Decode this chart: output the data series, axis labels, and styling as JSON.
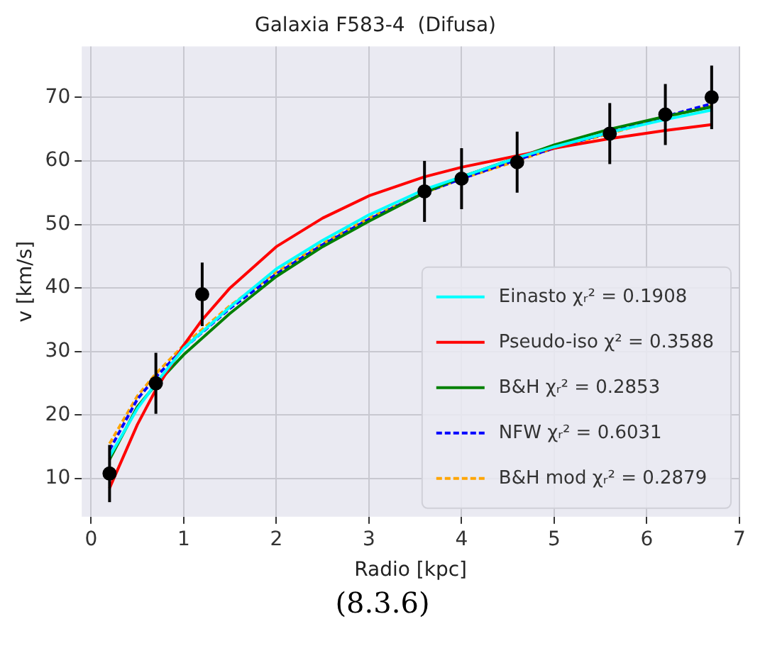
{
  "chart_data": {
    "type": "line",
    "title": "Galaxia F583-4  (Difusa)",
    "xlabel": "Radio [kpc]",
    "ylabel": "v [km/s]",
    "xlim": [
      -0.1,
      7
    ],
    "xticks": [
      0,
      1,
      2,
      3,
      4,
      5,
      6,
      7
    ],
    "ylim": [
      4,
      78
    ],
    "yticks": [
      10,
      20,
      30,
      40,
      50,
      60,
      70
    ],
    "grid": true,
    "legend": "bottom right",
    "marker": "none",
    "series": [
      {
        "name": "Einasto χᵣ² = 0.1908",
        "color": "#00ffff",
        "line_style": "solid",
        "x": [
          0.2,
          0.5,
          0.7,
          1,
          1.5,
          2,
          2.5,
          3,
          3.6,
          4,
          4.6,
          5,
          5.6,
          6.2,
          6.7
        ],
        "values": [
          13.5,
          21,
          25,
          30.5,
          37,
          43,
          47.5,
          51.5,
          55.5,
          57.5,
          60.5,
          62.2,
          64.5,
          66.5,
          68
        ]
      },
      {
        "name": "Pseudo-iso χ² = 0.3588",
        "color": "#ff0000",
        "line_style": "solid",
        "x": [
          0.2,
          0.5,
          0.7,
          1,
          1.2,
          1.5,
          2,
          2.5,
          3,
          3.6,
          4,
          4.6,
          5,
          5.6,
          6.2,
          6.7
        ],
        "values": [
          8.5,
          18.5,
          24,
          31,
          35,
          40,
          46.5,
          51,
          54.5,
          57.5,
          59,
          60.8,
          62,
          63.5,
          64.8,
          65.7
        ]
      },
      {
        "name": "B&H χᵣ² = 0.2853",
        "color": "#008000",
        "line_style": "solid",
        "x": [
          0.2,
          0.5,
          0.7,
          1,
          1.5,
          2,
          2.5,
          3,
          3.6,
          4,
          4.6,
          5,
          5.6,
          6.2,
          6.7
        ],
        "values": [
          13,
          21.3,
          24.8,
          29.5,
          36,
          41.8,
          46.5,
          50.5,
          55,
          57.5,
          60.5,
          62.5,
          65,
          67,
          68.5
        ]
      },
      {
        "name": "NFW χᵣ² = 0.6031",
        "color": "#0000ff",
        "line_style": "dashed",
        "x": [
          0.2,
          0.5,
          0.7,
          1,
          1.5,
          2,
          2.5,
          3,
          3.6,
          4,
          4.6,
          5,
          5.6,
          6.2,
          6.7
        ],
        "values": [
          14.5,
          22.5,
          26,
          30.5,
          36.8,
          42.2,
          46.8,
          50.8,
          55,
          57.2,
          60.2,
          62,
          64.5,
          67,
          69
        ]
      },
      {
        "name": "B&H mod χᵣ² = 0.2879",
        "color": "#ffa500",
        "line_style": "dashed",
        "x": [
          0.2,
          0.5,
          0.7,
          1,
          1.5,
          2,
          2.5,
          3,
          3.6,
          4,
          4.6,
          5,
          5.6,
          6.2,
          6.7
        ],
        "values": [
          15.5,
          23,
          26.5,
          31,
          37.2,
          42.5,
          47,
          51,
          55,
          57.2,
          60,
          62,
          64.3,
          66.8,
          68.7
        ]
      },
      {
        "type": "scatter",
        "color": "#000000",
        "marker": "circle",
        "x": [
          0.2,
          0.7,
          1.2,
          3.6,
          4.0,
          4.6,
          5.6,
          6.2,
          6.7
        ],
        "values": [
          10.8,
          25,
          39,
          55.2,
          57.2,
          59.8,
          64.3,
          67.3,
          70
        ],
        "errors": [
          4.5,
          4.8,
          5,
          4.8,
          4.8,
          4.8,
          4.8,
          4.8,
          5
        ]
      }
    ],
    "annotations": [
      "(8.3.6)"
    ]
  }
}
